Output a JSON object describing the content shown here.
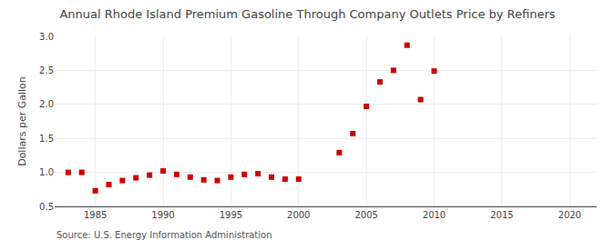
{
  "chart_data": {
    "type": "scatter",
    "title": "Annual Rhode Island Premium Gasoline Through Company Outlets Price by Refiners",
    "ylabel": "Dollars per Gallon",
    "source": "Source: U.S. Energy Information Administration",
    "x": [
      1983,
      1984,
      1985,
      1986,
      1987,
      1988,
      1989,
      1990,
      1991,
      1992,
      1993,
      1994,
      1995,
      1996,
      1997,
      1998,
      1999,
      2000,
      2003,
      2004,
      2005,
      2006,
      2007,
      2008,
      2009,
      2010
    ],
    "values": [
      1.0,
      1.0,
      0.73,
      0.82,
      0.88,
      0.92,
      0.96,
      1.02,
      0.97,
      0.93,
      0.89,
      0.88,
      0.93,
      0.97,
      0.98,
      0.93,
      0.9,
      0.9,
      1.29,
      1.57,
      1.97,
      2.33,
      2.5,
      2.87,
      2.07,
      2.49
    ],
    "color": "#cc0000",
    "marker": "square",
    "xlim": [
      1982,
      2022
    ],
    "ylim": [
      0.5,
      3.0
    ],
    "xticks": [
      1985,
      1990,
      1995,
      2000,
      2005,
      2010,
      2015,
      2020
    ],
    "yticks": [
      0.5,
      {
        "value": 1.0,
        "label": "1.0"
      },
      1.5,
      {
        "value": 2.0,
        "label": "2.0"
      },
      2.5,
      {
        "value": 3.0,
        "label": "3.0"
      }
    ],
    "grid": true
  }
}
